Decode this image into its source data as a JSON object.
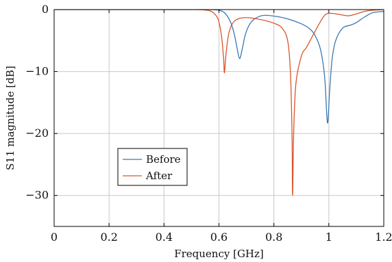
{
  "chart_data": {
    "type": "line",
    "title": "",
    "xlabel": "Frequency [GHz]",
    "ylabel": "S11 magnitude [dB]",
    "xlim": [
      0,
      1.2
    ],
    "ylim": [
      -35,
      0
    ],
    "x_ticks": [
      0,
      0.2,
      0.4,
      0.6,
      0.8,
      1,
      1.2
    ],
    "y_ticks": [
      0,
      -10,
      -20,
      -30
    ],
    "x_tick_labels": [
      "0",
      "0.2",
      "0.4",
      "0.6",
      "0.8",
      "1",
      "1.2"
    ],
    "y_tick_labels": [
      "0",
      "−10",
      "−20",
      "−30"
    ],
    "grid": true,
    "legend_position": "lower-left",
    "series": [
      {
        "name": "Before",
        "color": "#3a78b0",
        "points": [
          [
            0,
            0
          ],
          [
            0.2,
            0
          ],
          [
            0.4,
            0
          ],
          [
            0.5,
            0
          ],
          [
            0.55,
            0
          ],
          [
            0.58,
            -0.02
          ],
          [
            0.6,
            -0.1
          ],
          [
            0.62,
            -0.5
          ],
          [
            0.64,
            -1.8
          ],
          [
            0.655,
            -3.8
          ],
          [
            0.665,
            -6
          ],
          [
            0.675,
            -7.9
          ],
          [
            0.685,
            -6.3
          ],
          [
            0.695,
            -4.2
          ],
          [
            0.71,
            -2.5
          ],
          [
            0.73,
            -1.5
          ],
          [
            0.76,
            -0.95
          ],
          [
            0.8,
            -1.05
          ],
          [
            0.85,
            -1.5
          ],
          [
            0.9,
            -2.3
          ],
          [
            0.93,
            -3.1
          ],
          [
            0.95,
            -4.2
          ],
          [
            0.97,
            -6.5
          ],
          [
            0.985,
            -11
          ],
          [
            0.995,
            -18.3
          ],
          [
            1.003,
            -13
          ],
          [
            1.012,
            -8
          ],
          [
            1.025,
            -5
          ],
          [
            1.05,
            -3
          ],
          [
            1.08,
            -2.5
          ],
          [
            1.1,
            -2.1
          ],
          [
            1.13,
            -1.2
          ],
          [
            1.16,
            -0.5
          ],
          [
            1.2,
            -0.3
          ]
        ]
      },
      {
        "name": "After",
        "color": "#d9542a",
        "points": [
          [
            0,
            0
          ],
          [
            0.2,
            0
          ],
          [
            0.4,
            0
          ],
          [
            0.5,
            0
          ],
          [
            0.54,
            -0.03
          ],
          [
            0.57,
            -0.25
          ],
          [
            0.59,
            -1
          ],
          [
            0.6,
            -2
          ],
          [
            0.61,
            -4.5
          ],
          [
            0.617,
            -8
          ],
          [
            0.62,
            -10.2
          ],
          [
            0.625,
            -7.5
          ],
          [
            0.635,
            -4
          ],
          [
            0.65,
            -2.2
          ],
          [
            0.67,
            -1.5
          ],
          [
            0.7,
            -1.3
          ],
          [
            0.75,
            -1.6
          ],
          [
            0.8,
            -2.2
          ],
          [
            0.83,
            -3
          ],
          [
            0.85,
            -5
          ],
          [
            0.86,
            -10
          ],
          [
            0.866,
            -20
          ],
          [
            0.868,
            -30
          ],
          [
            0.872,
            -20
          ],
          [
            0.88,
            -12
          ],
          [
            0.9,
            -7.5
          ],
          [
            0.92,
            -6
          ],
          [
            0.95,
            -3.5
          ],
          [
            0.98,
            -1.2
          ],
          [
            1,
            -0.6
          ],
          [
            1.04,
            -0.8
          ],
          [
            1.07,
            -1
          ],
          [
            1.1,
            -0.7
          ],
          [
            1.14,
            -0.2
          ],
          [
            1.2,
            0
          ]
        ]
      }
    ]
  }
}
